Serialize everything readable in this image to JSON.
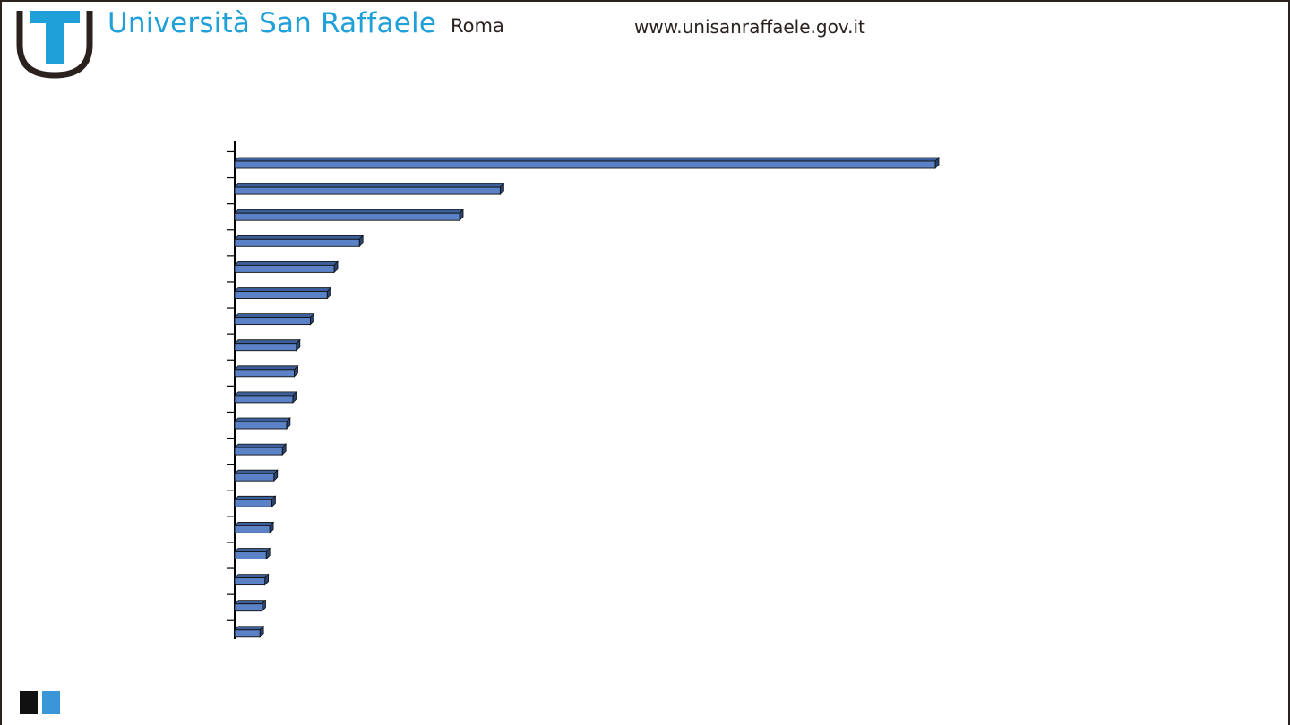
{
  "header": {
    "university_name": "Università San Raffaele",
    "city": "Roma",
    "website": "www.unisanraffaele.gov.it",
    "logo_icon": "u-shield-icon",
    "logo_colors": {
      "primary": "#1fa0d8",
      "outline": "#2b2220"
    }
  },
  "footer": {
    "squares_colors": {
      "dark": "#111111",
      "accent": "#3a96d9"
    }
  },
  "chart_data": {
    "type": "bar",
    "orientation": "horizontal",
    "title": "",
    "xlabel": "",
    "ylabel": "",
    "grid": false,
    "legend": "none",
    "bar_color": "#5b82c6",
    "bar_style": "3d",
    "xlim": [
      0,
      100
    ],
    "categories": [
      "",
      "",
      "",
      "",
      "",
      "",
      "",
      "",
      "",
      "",
      "",
      "",
      "",
      "",
      "",
      "",
      "",
      "",
      ""
    ],
    "values": [
      100,
      37.9,
      32.1,
      17.8,
      14.2,
      13.2,
      10.8,
      8.8,
      8.5,
      8.3,
      7.4,
      6.8,
      5.6,
      5.3,
      5.0,
      4.5,
      4.3,
      3.9,
      3.6
    ]
  }
}
